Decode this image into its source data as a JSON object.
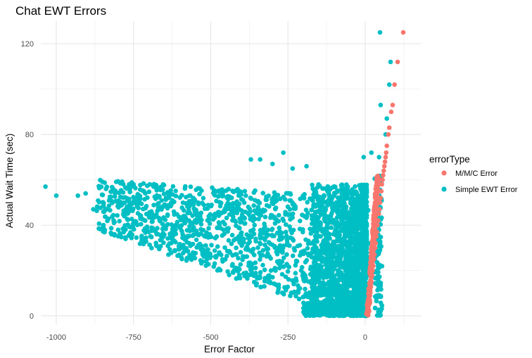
{
  "chart_data": {
    "type": "scatter",
    "title": "Chat EWT Errors",
    "xlabel": "Error Factor",
    "ylabel": "Actual Wait Time (sec)",
    "xlim": [
      -1050,
      180
    ],
    "ylim": [
      -4,
      130
    ],
    "x_ticks": [
      -1000,
      -750,
      -500,
      -250,
      0
    ],
    "x_tick_labels": [
      "-1000",
      "-750",
      "-500",
      "-250",
      "0"
    ],
    "y_ticks": [
      0,
      40,
      80,
      120
    ],
    "y_tick_labels": [
      "0",
      "40",
      "80",
      "120"
    ],
    "grid": true,
    "legend": {
      "title": "errorType",
      "position": "right",
      "entries": [
        {
          "label": "M/M/C Error",
          "color": "#F8766D"
        },
        {
          "label": "Simple EWT Error",
          "color": "#00BFC4"
        }
      ]
    },
    "series": [
      {
        "name": "M/M/C Error",
        "color": "#F8766D",
        "points": [
          [
            123,
            125
          ],
          [
            105,
            112
          ],
          [
            95,
            102
          ],
          [
            89,
            93
          ],
          [
            84,
            90
          ],
          [
            78,
            83
          ],
          [
            75,
            80
          ],
          [
            70,
            75
          ],
          [
            68,
            72
          ],
          [
            66,
            70
          ],
          [
            64,
            68
          ],
          [
            62,
            66
          ],
          [
            60,
            64
          ],
          [
            58,
            62
          ],
          [
            56,
            60
          ],
          [
            54,
            58
          ],
          [
            52,
            55
          ],
          [
            50,
            52
          ],
          [
            48,
            50
          ],
          [
            46,
            47
          ],
          [
            44,
            45
          ],
          [
            42,
            42
          ],
          [
            40,
            40
          ],
          [
            38,
            37
          ],
          [
            36,
            35
          ],
          [
            34,
            32
          ],
          [
            32,
            30
          ],
          [
            30,
            27
          ],
          [
            28,
            25
          ],
          [
            26,
            22
          ],
          [
            24,
            20
          ],
          [
            22,
            18
          ],
          [
            20,
            15
          ],
          [
            18,
            13
          ],
          [
            16,
            11
          ],
          [
            14,
            9
          ],
          [
            12,
            7
          ],
          [
            10,
            5
          ],
          [
            8,
            3
          ],
          [
            6,
            2
          ],
          [
            4,
            1
          ]
        ]
      },
      {
        "name": "Simple EWT Error",
        "color": "#00BFC4",
        "points": [
          [
            48,
            125
          ],
          [
            82,
            112
          ],
          [
            78,
            102
          ],
          [
            50,
            93
          ],
          [
            70,
            87
          ],
          [
            66,
            80
          ],
          [
            -1035,
            57
          ],
          [
            -1000,
            53
          ],
          [
            -930,
            53
          ],
          [
            -905,
            54
          ],
          [
            -880,
            47
          ],
          [
            -370,
            69
          ],
          [
            -340,
            69
          ],
          [
            -300,
            67
          ],
          [
            -265,
            72
          ],
          [
            -235,
            65
          ],
          [
            -190,
            66
          ],
          [
            20,
            72
          ],
          [
            -5,
            70
          ],
          [
            45,
            70
          ]
        ]
      }
    ]
  }
}
